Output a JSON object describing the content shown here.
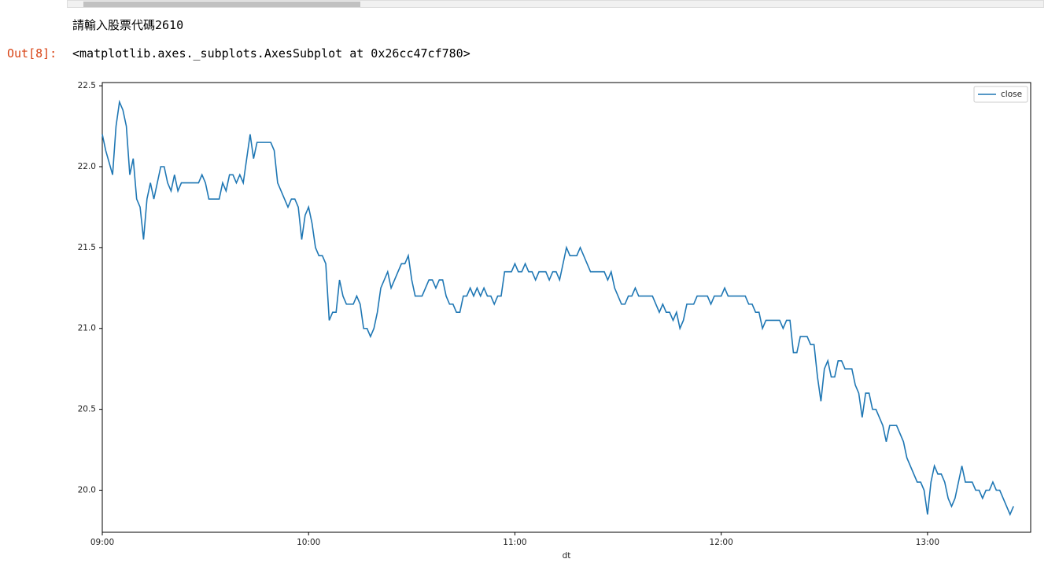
{
  "notebook": {
    "stdout": "請輸入股票代碼2610",
    "out_prompt": "Out[8]:",
    "output_repr": "<matplotlib.axes._subplots.AxesSubplot at 0x26cc47cf780>"
  },
  "chart_data": {
    "type": "line",
    "xlabel": "dt",
    "legend": "upper right",
    "grid": false,
    "x": [
      "09:00",
      "09:01",
      "09:03",
      "09:04",
      "09:05",
      "09:06",
      "09:07",
      "09:08",
      "09:09",
      "09:10",
      "09:11",
      "09:12",
      "09:13",
      "09:14",
      "09:15",
      "09:17",
      "09:18",
      "09:19",
      "09:20",
      "09:21",
      "09:22",
      "09:23",
      "09:28",
      "09:29",
      "09:30",
      "09:31",
      "09:34",
      "09:35",
      "09:36",
      "09:37",
      "09:38",
      "09:39",
      "09:40",
      "09:41",
      "09:43",
      "09:44",
      "09:45",
      "09:49",
      "09:50",
      "09:51",
      "09:54",
      "09:55",
      "09:56",
      "09:57",
      "09:58",
      "09:59",
      "10:00",
      "10:01",
      "10:02",
      "10:03",
      "10:04",
      "10:05",
      "10:06",
      "10:07",
      "10:08",
      "10:09",
      "10:10",
      "10:11",
      "10:13",
      "10:14",
      "10:15",
      "10:16",
      "10:17",
      "10:18",
      "10:19",
      "10:20",
      "10:21",
      "10:23",
      "10:24",
      "10:26",
      "10:27",
      "10:28",
      "10:29",
      "10:30",
      "10:31",
      "10:33",
      "10:35",
      "10:36",
      "10:37",
      "10:38",
      "10:39",
      "10:40",
      "10:41",
      "10:42",
      "10:43",
      "10:44",
      "10:45",
      "10:46",
      "10:47",
      "10:48",
      "10:49",
      "10:50",
      "10:51",
      "10:52",
      "10:53",
      "10:54",
      "10:55",
      "10:56",
      "10:57",
      "10:59",
      "11:00",
      "11:01",
      "11:02",
      "11:03",
      "11:04",
      "11:05",
      "11:06",
      "11:07",
      "11:09",
      "11:10",
      "11:11",
      "11:12",
      "11:13",
      "11:15",
      "11:16",
      "11:18",
      "11:19",
      "11:22",
      "11:26",
      "11:27",
      "11:28",
      "11:29",
      "11:31",
      "11:32",
      "11:33",
      "11:34",
      "11:35",
      "11:36",
      "11:40",
      "11:42",
      "11:43",
      "11:44",
      "11:45",
      "11:46",
      "11:47",
      "11:48",
      "11:49",
      "11:50",
      "11:52",
      "11:53",
      "11:56",
      "11:57",
      "11:58",
      "12:00",
      "12:01",
      "12:02",
      "12:07",
      "12:08",
      "12:09",
      "12:10",
      "12:11",
      "12:12",
      "12:13",
      "12:17",
      "12:18",
      "12:19",
      "12:20",
      "12:21",
      "12:22",
      "12:23",
      "12:25",
      "12:26",
      "12:27",
      "12:28",
      "12:29",
      "12:30",
      "12:31",
      "12:32",
      "12:33",
      "12:34",
      "12:35",
      "12:36",
      "12:38",
      "12:39",
      "12:40",
      "12:41",
      "12:42",
      "12:43",
      "12:44",
      "12:45",
      "12:47",
      "12:48",
      "12:49",
      "12:51",
      "12:53",
      "12:54",
      "12:57",
      "12:58",
      "12:59",
      "13:00",
      "13:01",
      "13:02",
      "13:03",
      "13:04",
      "13:05",
      "13:06",
      "13:07",
      "13:08",
      "13:10",
      "13:11",
      "13:13",
      "13:14",
      "13:15",
      "13:16",
      "13:17",
      "13:18",
      "13:19",
      "13:20",
      "13:21",
      "13:23",
      "13:24",
      "13:25"
    ],
    "series": [
      {
        "name": "close",
        "color": "#1f77b4",
        "values": [
          22.2,
          22.1,
          21.95,
          22.25,
          22.4,
          22.35,
          22.25,
          21.95,
          22.05,
          21.8,
          21.75,
          21.55,
          21.8,
          21.9,
          21.8,
          22.0,
          22.0,
          21.9,
          21.85,
          21.95,
          21.85,
          21.9,
          21.9,
          21.95,
          21.9,
          21.8,
          21.8,
          21.9,
          21.85,
          21.95,
          21.95,
          21.9,
          21.95,
          21.9,
          22.2,
          22.05,
          22.15,
          22.15,
          22.1,
          21.9,
          21.75,
          21.8,
          21.8,
          21.75,
          21.55,
          21.7,
          21.75,
          21.65,
          21.5,
          21.45,
          21.45,
          21.4,
          21.05,
          21.1,
          21.1,
          21.3,
          21.2,
          21.15,
          21.15,
          21.2,
          21.15,
          21.0,
          21.0,
          20.95,
          21.0,
          21.1,
          21.25,
          21.35,
          21.25,
          21.35,
          21.4,
          21.4,
          21.45,
          21.3,
          21.2,
          21.2,
          21.3,
          21.3,
          21.25,
          21.3,
          21.3,
          21.2,
          21.15,
          21.15,
          21.1,
          21.1,
          21.2,
          21.2,
          21.25,
          21.2,
          21.25,
          21.2,
          21.25,
          21.2,
          21.2,
          21.15,
          21.2,
          21.2,
          21.35,
          21.35,
          21.4,
          21.35,
          21.35,
          21.4,
          21.35,
          21.35,
          21.3,
          21.35,
          21.35,
          21.3,
          21.35,
          21.35,
          21.3,
          21.5,
          21.45,
          21.45,
          21.5,
          21.35,
          21.35,
          21.3,
          21.35,
          21.25,
          21.15,
          21.15,
          21.2,
          21.2,
          21.25,
          21.2,
          21.2,
          21.1,
          21.15,
          21.1,
          21.1,
          21.05,
          21.1,
          21.0,
          21.05,
          21.15,
          21.15,
          21.2,
          21.2,
          21.15,
          21.2,
          21.2,
          21.25,
          21.2,
          21.2,
          21.15,
          21.15,
          21.1,
          21.1,
          21.0,
          21.05,
          21.05,
          21.0,
          21.05,
          21.05,
          20.85,
          20.85,
          20.95,
          20.95,
          20.9,
          20.9,
          20.7,
          20.55,
          20.75,
          20.8,
          20.7,
          20.7,
          20.8,
          20.8,
          20.75,
          20.75,
          20.65,
          20.6,
          20.45,
          20.6,
          20.6,
          20.5,
          20.5,
          20.4,
          20.3,
          20.4,
          20.4,
          20.3,
          20.2,
          20.05,
          20.05,
          20.0,
          19.85,
          20.05,
          20.15,
          20.1,
          20.1,
          20.05,
          19.95,
          19.9,
          19.95,
          20.15,
          20.05,
          20.05,
          20.0,
          20.0,
          19.95,
          20.0,
          20.0,
          20.05,
          20.0,
          20.0,
          19.9,
          19.85,
          19.9
        ]
      }
    ],
    "xlim": [
      "09:00",
      "13:30"
    ],
    "xticks": [
      "09:00",
      "10:00",
      "11:00",
      "12:00",
      "13:00"
    ],
    "ylim": [
      19.74,
      22.52
    ],
    "yticks": [
      {
        "value": 20,
        "label": "20.0"
      },
      20.5,
      {
        "value": 21,
        "label": "21.0"
      },
      21.5,
      {
        "value": 22,
        "label": "22.0"
      },
      22.5
    ]
  }
}
